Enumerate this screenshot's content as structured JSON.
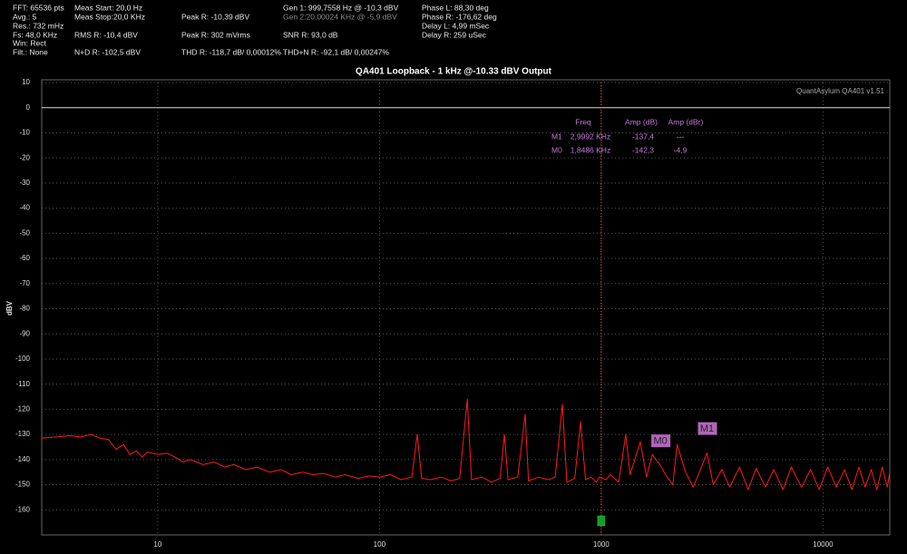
{
  "header": {
    "fft": "FFT: 65536 pts",
    "avg": "Avg.: 5",
    "res": "Res.: 732 mHz",
    "fs": "Fs: 48,0 KHz",
    "win": "Win: Rect",
    "filt": "Filt.: None",
    "meas_start": "Meas Start: 20,0 Hz",
    "meas_stop": "Meas Stop:20,0 KHz",
    "rms_r": "RMS R: -10,4 dBV",
    "nd_r": "N+D R: -102,5 dBV",
    "peak_r_dbv": "Peak R: -10,39 dBV",
    "peak_r_mv": "Peak R: 302 mVrms",
    "thd_r": "THD R: -118,7 dB/ 0,00012%",
    "gen1": "Gen 1: 999,7558 Hz @ -10,3  dBV",
    "gen2": "Gen 2:20,00024 KHz @ -5,9  dBV",
    "snr_r": "SNR R: 93,0 dB",
    "thdn_r": "THD+N R: -92,1 dB/ 0,00247%",
    "phase_l": "Phase L: 88,30 deg",
    "phase_r": "Phase R: -176,62 deg",
    "delay_l": "Delay L: 4,99 mSec",
    "delay_r": "Delay R: 259 uSec"
  },
  "chart_data": {
    "type": "line",
    "title": "QA401 Loopback - 1 kHz @-10.33 dBV Output",
    "watermark": "QuantAsylum QA401 v1.51",
    "y_label": "dBV",
    "log_x": true,
    "grid": true,
    "xlim": [
      3,
      20000
    ],
    "ylim": [
      -170,
      10
    ],
    "xticks": [
      10,
      100,
      1000,
      10000
    ],
    "yticks": [
      10,
      0,
      -10,
      -20,
      -30,
      -40,
      -50,
      -60,
      -70,
      -80,
      -90,
      -100,
      -110,
      -120,
      -130,
      -140,
      -150,
      -160
    ],
    "cursor_x": 1000,
    "series": [
      {
        "name": "R",
        "color": "#ff1a1a",
        "x": [
          3,
          3.5,
          4,
          4.5,
          5,
          5.5,
          6,
          6.5,
          7,
          7.5,
          8,
          8.5,
          9,
          10,
          11,
          12,
          13,
          14,
          16,
          18,
          20,
          22,
          25,
          28,
          32,
          36,
          40,
          45,
          50,
          56,
          63,
          70,
          80,
          90,
          100,
          112,
          125,
          140,
          148,
          155,
          170,
          190,
          210,
          230,
          249,
          260,
          290,
          320,
          350,
          366,
          380,
          420,
          454,
          470,
          520,
          580,
          620,
          668,
          700,
          760,
          807,
          850,
          900,
          950,
          980,
          1050,
          1100,
          1200,
          1290,
          1350,
          1500,
          1600,
          1700,
          1849,
          1950,
          2100,
          2200,
          2400,
          2600,
          2800,
          3000,
          3200,
          3500,
          3800,
          4200,
          4600,
          5000,
          5500,
          6000,
          6600,
          7200,
          8000,
          8800,
          9600,
          10500,
          11500,
          12500,
          13500,
          14500,
          15500,
          16500,
          17500,
          18500,
          19500,
          20000
        ],
        "values": [
          -131.5,
          -131,
          -130.5,
          -131,
          -130,
          -131.5,
          -132,
          -136,
          -134,
          -138,
          -136.5,
          -139,
          -137,
          -138,
          -137.5,
          -139,
          -141,
          -140,
          -142,
          -141,
          -143,
          -142,
          -144,
          -143,
          -145,
          -144,
          -146,
          -145,
          -146,
          -145.5,
          -147,
          -146,
          -147.5,
          -146.5,
          -147,
          -146,
          -148,
          -147,
          -130,
          -147.5,
          -148,
          -147,
          -148.5,
          -147.5,
          -116,
          -148,
          -147,
          -149,
          -147.5,
          -130,
          -148,
          -147,
          -122,
          -148.5,
          -147,
          -148,
          -147,
          -118,
          -149,
          -147.5,
          -125,
          -148,
          -147,
          -149,
          -147,
          -148,
          -146,
          -149,
          -130,
          -146,
          -133,
          -147,
          -138,
          -142.3,
          -146,
          -150,
          -134,
          -145,
          -151,
          -144,
          -137.4,
          -150,
          -144,
          -151,
          -143,
          -152,
          -143.5,
          -151,
          -144,
          -152,
          -143,
          -151,
          -144,
          -152,
          -143,
          -151,
          -144,
          -152,
          -143,
          -151,
          -144,
          -152,
          -143,
          -151,
          -145
        ]
      }
    ],
    "marker_headers": [
      "Freq",
      "Amp (dB)",
      "Amp (dBr)"
    ],
    "markers": [
      {
        "name": "M1",
        "freq": 2999.2,
        "freq_label": "2,9992 KHz",
        "amp": -137.4,
        "amp_label": "-137,4",
        "dbr_label": "---"
      },
      {
        "name": "M0",
        "freq": 1848.6,
        "freq_label": "1,8486 KHz",
        "amp": -142.3,
        "amp_label": "-142,3",
        "dbr": -4.9,
        "dbr_label": "-4,9"
      }
    ]
  }
}
